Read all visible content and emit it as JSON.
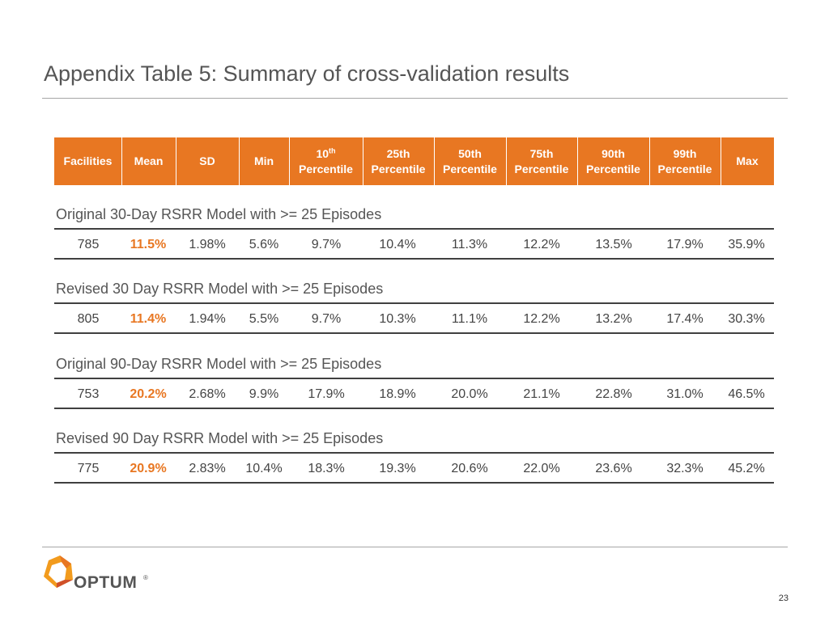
{
  "title": "Appendix Table 5: Summary of cross-validation results",
  "columns": [
    {
      "line1": "Facilities",
      "line2": "",
      "sup": ""
    },
    {
      "line1": "Mean",
      "line2": "",
      "sup": ""
    },
    {
      "line1": "SD",
      "line2": "",
      "sup": ""
    },
    {
      "line1": "Min",
      "line2": "",
      "sup": ""
    },
    {
      "line1": "10",
      "line2": "Percentile",
      "sup": "th"
    },
    {
      "line1": "25th",
      "line2": "Percentile",
      "sup": ""
    },
    {
      "line1": "50th",
      "line2": "Percentile",
      "sup": ""
    },
    {
      "line1": "75th",
      "line2": "Percentile",
      "sup": ""
    },
    {
      "line1": "90th",
      "line2": "Percentile",
      "sup": ""
    },
    {
      "line1": "99th",
      "line2": "Percentile",
      "sup": ""
    },
    {
      "line1": "Max",
      "line2": "",
      "sup": ""
    }
  ],
  "sections": [
    {
      "title": "Original 30-Day RSRR Model with >= 25 Episodes",
      "values": [
        "785",
        "11.5%",
        "1.98%",
        "5.6%",
        "9.7%",
        "10.4%",
        "11.3%",
        "12.2%",
        "13.5%",
        "17.9%",
        "35.9%"
      ]
    },
    {
      "title": "Revised 30 Day RSRR Model with >= 25 Episodes",
      "values": [
        "805",
        "11.4%",
        "1.94%",
        "5.5%",
        "9.7%",
        "10.3%",
        "11.1%",
        "12.2%",
        "13.2%",
        "17.4%",
        "30.3%"
      ]
    },
    {
      "title": "Original 90-Day RSRR Model with >= 25 Episodes",
      "values": [
        "753",
        "20.2%",
        "2.68%",
        "9.9%",
        "17.9%",
        "18.9%",
        "20.0%",
        "21.1%",
        "22.8%",
        "31.0%",
        "46.5%"
      ]
    },
    {
      "title": "Revised 90 Day RSRR Model with >= 25 Episodes",
      "values": [
        "775",
        "20.9%",
        "2.83%",
        "10.4%",
        "18.3%",
        "19.3%",
        "20.6%",
        "22.0%",
        "23.6%",
        "32.3%",
        "45.2%"
      ]
    }
  ],
  "logo": {
    "name": "OPTUM",
    "reg": "®",
    "icon": "optum-logo-icon"
  },
  "page_number": "23",
  "colors": {
    "accent": "#e87722",
    "text": "#444444",
    "rule": "#404040"
  }
}
